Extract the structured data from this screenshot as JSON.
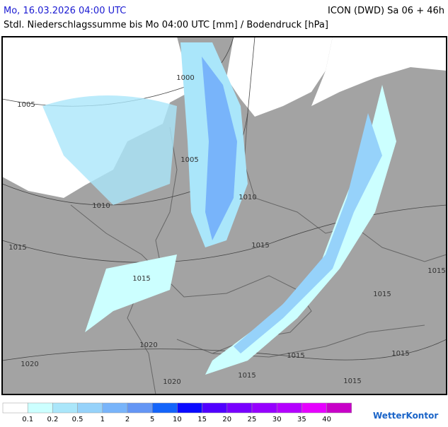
{
  "header": {
    "date": "Mo, 16.03.2026 04:00 UTC",
    "model": "ICON (DWD) Sa 06 + 46h",
    "subtitle": "Stdl. Niederschlagssumme bis Mo 04:00 UTC [mm] / Bodendruck [hPa]"
  },
  "isobar_labels": [
    1000,
    1005,
    1005,
    1010,
    1010,
    1015,
    1015,
    1015,
    1015,
    1015,
    1015,
    1015,
    1015,
    1015,
    1020,
    1020,
    1020
  ],
  "legend": {
    "colors": [
      "#ffffff",
      "#ccffff",
      "#aae6fa",
      "#96d2fa",
      "#78b4fa",
      "#6496f5",
      "#1464fa",
      "#0a0aff",
      "#5000ff",
      "#7800ff",
      "#9600ff",
      "#b400ff",
      "#e600ff",
      "#c800c8"
    ],
    "labels": [
      "0.1",
      "0.2",
      "0.5",
      "1",
      "2",
      "5",
      "10",
      "15",
      "20",
      "25",
      "30",
      "35",
      "40"
    ]
  },
  "logo": "WetterKontor"
}
